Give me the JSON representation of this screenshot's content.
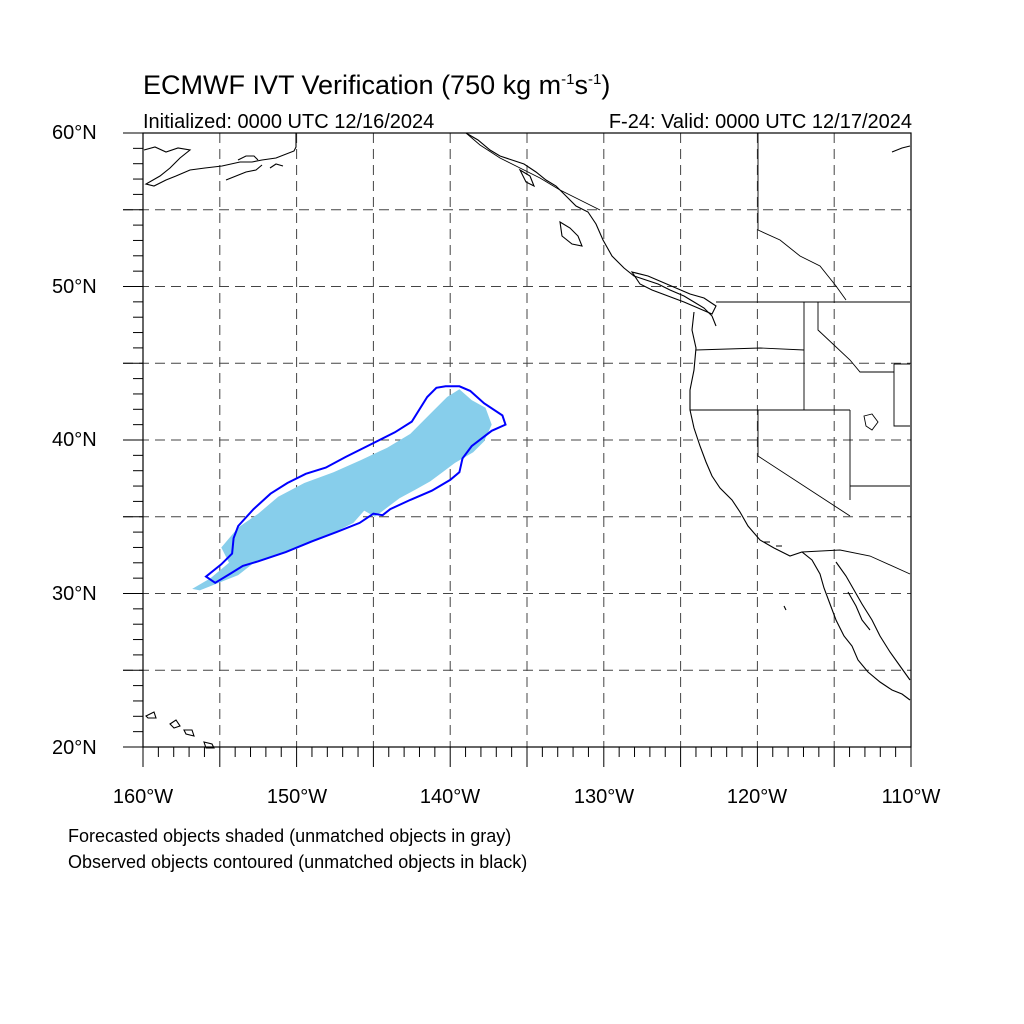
{
  "title": {
    "main": "ECMWF IVT Verification (750 kg m",
    "exp1": "-1",
    "mid": "s",
    "exp2": "-1",
    "close": ")"
  },
  "subtitle": {
    "init": "Initialized: 0000 UTC 12/16/2024",
    "valid": "F-24: Valid: 0000 UTC 12/17/2024"
  },
  "map_data": {
    "projection": "cylindrical equidistant",
    "lon_range": [
      -160,
      -110
    ],
    "lat_range": [
      20,
      60
    ],
    "grid": "dashed every 5 degrees",
    "lat_labels": [
      {
        "lat": 60,
        "text": "60°N"
      },
      {
        "lat": 50,
        "text": "50°N"
      },
      {
        "lat": 40,
        "text": "40°N"
      },
      {
        "lat": 30,
        "text": "30°N"
      },
      {
        "lat": 20,
        "text": "20°N"
      }
    ],
    "lon_labels": [
      {
        "lon": -160,
        "text": "160°W"
      },
      {
        "lon": -150,
        "text": "150°W"
      },
      {
        "lon": -140,
        "text": "140°W"
      },
      {
        "lon": -130,
        "text": "130°W"
      },
      {
        "lon": -120,
        "text": "120°W"
      },
      {
        "lon": -110,
        "text": "110°W"
      }
    ],
    "forecast_object": {
      "style": "shaded",
      "color": "#87ceeb",
      "polygon": [
        [
          -156.3,
          30.2
        ],
        [
          -153.8,
          31.2
        ],
        [
          -152.9,
          31.9
        ],
        [
          -150.6,
          32.7
        ],
        [
          -148.3,
          33.6
        ],
        [
          -146.3,
          34.6
        ],
        [
          -145.6,
          35.4
        ],
        [
          -144.9,
          35.0
        ],
        [
          -144.1,
          35.6
        ],
        [
          -143.3,
          36.2
        ],
        [
          -142.2,
          36.8
        ],
        [
          -141.3,
          37.3
        ],
        [
          -140.5,
          37.9
        ],
        [
          -139.7,
          38.5
        ],
        [
          -138.5,
          39.2
        ],
        [
          -137.8,
          39.9
        ],
        [
          -137.3,
          41.0
        ],
        [
          -137.7,
          42.1
        ],
        [
          -138.6,
          42.6
        ],
        [
          -139.4,
          43.3
        ],
        [
          -140.2,
          42.8
        ],
        [
          -141.3,
          41.7
        ],
        [
          -142.6,
          40.4
        ],
        [
          -144.1,
          39.5
        ],
        [
          -145.8,
          38.7
        ],
        [
          -147.6,
          37.9
        ],
        [
          -149.5,
          37.2
        ],
        [
          -151.2,
          36.3
        ],
        [
          -152.5,
          35.2
        ],
        [
          -153.8,
          34.3
        ],
        [
          -154.9,
          33.0
        ],
        [
          -154.4,
          32.0
        ],
        [
          -155.6,
          31.0
        ],
        [
          -156.8,
          30.3
        ]
      ]
    },
    "observed_object": {
      "style": "contour",
      "color": "#0000ff",
      "polygon": [
        [
          -155.3,
          30.7
        ],
        [
          -154.3,
          31.3
        ],
        [
          -153.5,
          31.8
        ],
        [
          -152.5,
          32.1
        ],
        [
          -150.7,
          32.7
        ],
        [
          -149.0,
          33.4
        ],
        [
          -147.4,
          34.0
        ],
        [
          -145.9,
          34.6
        ],
        [
          -145.0,
          35.2
        ],
        [
          -144.4,
          35.1
        ],
        [
          -143.9,
          35.5
        ],
        [
          -142.6,
          36.1
        ],
        [
          -141.2,
          36.7
        ],
        [
          -140.0,
          37.4
        ],
        [
          -139.4,
          37.9
        ],
        [
          -139.2,
          38.8
        ],
        [
          -138.6,
          39.6
        ],
        [
          -137.3,
          40.6
        ],
        [
          -136.4,
          41.0
        ],
        [
          -136.6,
          41.6
        ],
        [
          -137.8,
          42.4
        ],
        [
          -138.7,
          43.2
        ],
        [
          -139.4,
          43.5
        ],
        [
          -140.3,
          43.5
        ],
        [
          -140.9,
          43.4
        ],
        [
          -141.5,
          42.8
        ],
        [
          -142.5,
          41.2
        ],
        [
          -143.6,
          40.5
        ],
        [
          -145.2,
          39.7
        ],
        [
          -146.8,
          38.9
        ],
        [
          -148.1,
          38.2
        ],
        [
          -149.4,
          37.8
        ],
        [
          -150.6,
          37.2
        ],
        [
          -151.7,
          36.5
        ],
        [
          -152.8,
          35.5
        ],
        [
          -153.8,
          34.4
        ],
        [
          -154.1,
          33.6
        ],
        [
          -154.2,
          32.6
        ],
        [
          -154.9,
          31.9
        ],
        [
          -155.9,
          31.1
        ]
      ]
    }
  },
  "notes": {
    "line1": "Forecasted objects shaded (unmatched objects in gray)",
    "line2": "Observed objects contoured (unmatched objects in black)"
  }
}
